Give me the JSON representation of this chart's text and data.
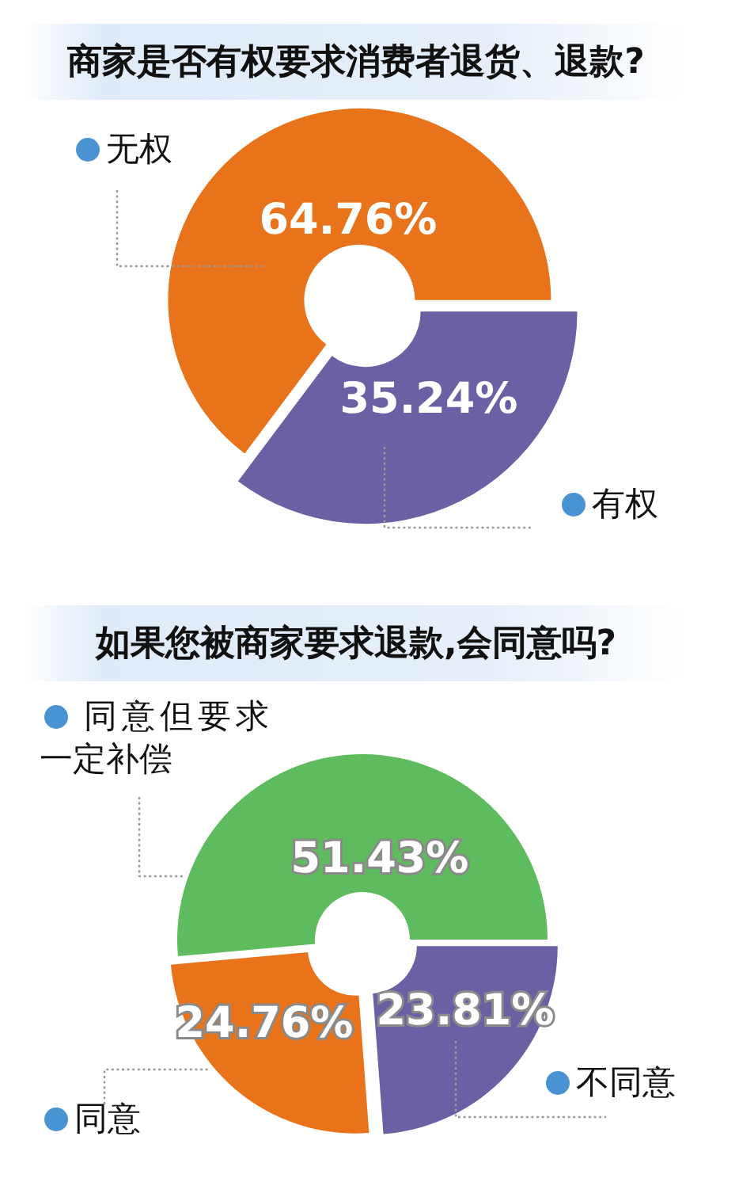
{
  "chart_data": [
    {
      "type": "donut",
      "title": "商家是否有权要求消费者退货、退款?",
      "categories": [
        "无权",
        "有权"
      ],
      "values": [
        64.76,
        35.24
      ],
      "colors": [
        "#e8731a",
        "#6a60a4"
      ],
      "value_labels": [
        "64.76%",
        "35.24%"
      ]
    },
    {
      "type": "donut",
      "title": "如果您被商家要求退款,会同意吗?",
      "categories": [
        "同意但要求一定补偿",
        "同意",
        "不同意"
      ],
      "values": [
        51.43,
        24.76,
        23.81
      ],
      "colors": [
        "#5ebb5e",
        "#e8731a",
        "#6a60a4"
      ],
      "value_labels": [
        "51.43%",
        "24.76%",
        "23.81%"
      ]
    }
  ]
}
